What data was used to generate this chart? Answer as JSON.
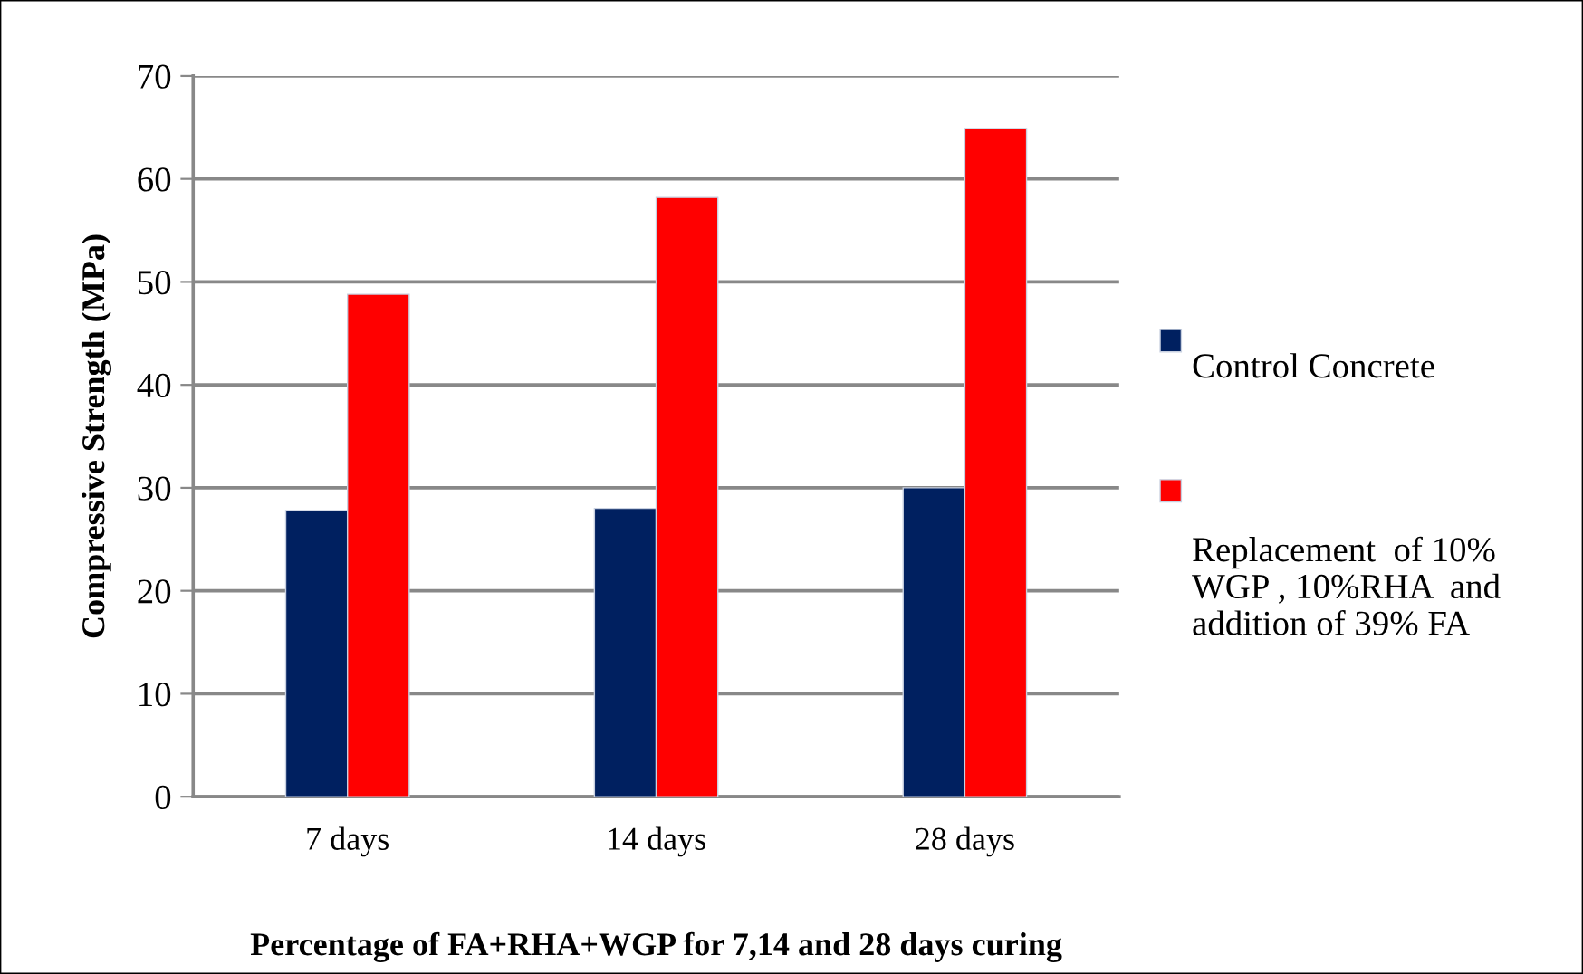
{
  "chart_data": {
    "type": "bar",
    "xlabel": "Percentage of FA+RHA+WGP for 7,14 and 28 days curing",
    "ylabel": "Compressive Strength (MPa)",
    "categories": [
      "7 days",
      "14 days",
      "28 days"
    ],
    "series": [
      {
        "name": "Control Concrete",
        "color": "#002060",
        "values": [
          27.8,
          28,
          30
        ]
      },
      {
        "name": "Replacement  of 10%\nWGP , 10%RHA  and\naddition of 39% FA",
        "color": "#ff0000",
        "values": [
          48.8,
          58.2,
          64.9
        ]
      }
    ],
    "ylim": [
      0,
      70
    ],
    "yticks": [
      0,
      10,
      20,
      30,
      40,
      50,
      60,
      70
    ],
    "grid": "y",
    "legend": "right"
  }
}
